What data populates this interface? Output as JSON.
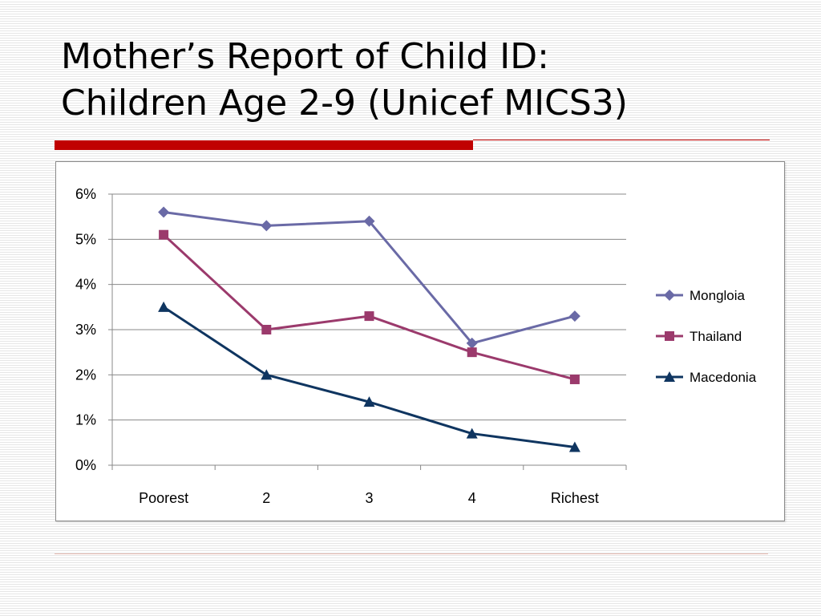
{
  "slide": {
    "title_line1": "Mother’s Report of Child ID:",
    "title_line2": "Children Age 2-9 (Unicef MICS3)"
  },
  "colors": {
    "accent": "#c00000",
    "background": "#ffffff",
    "gridline": "#888888"
  },
  "chart_data": {
    "type": "line",
    "title": "",
    "xlabel": "",
    "ylabel": "",
    "categories": [
      "Poorest",
      "2",
      "3",
      "4",
      "Richest"
    ],
    "y_ticks": [
      "0%",
      "1%",
      "2%",
      "3%",
      "4%",
      "5%",
      "6%"
    ],
    "ylim": [
      0,
      6
    ],
    "y_unit": "%",
    "grid": true,
    "legend_position": "right",
    "series": [
      {
        "name": "Mongloia",
        "values": [
          5.6,
          5.3,
          5.4,
          2.7,
          3.3
        ],
        "color": "#6a6aa6",
        "marker": "diamond"
      },
      {
        "name": "Thailand",
        "values": [
          5.1,
          3.0,
          3.3,
          2.5,
          1.9
        ],
        "color": "#9b3a6c",
        "marker": "square"
      },
      {
        "name": "Macedonia",
        "values": [
          3.5,
          2.0,
          1.4,
          0.7,
          0.4
        ],
        "color": "#0f3560",
        "marker": "triangle"
      }
    ]
  }
}
